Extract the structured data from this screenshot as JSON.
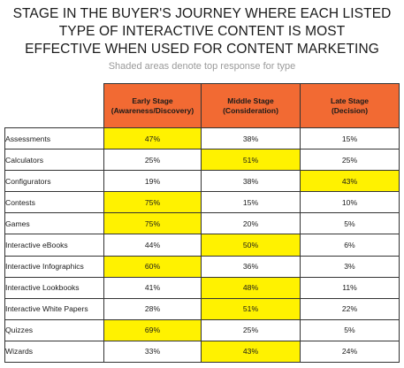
{
  "title_lines": [
    "STAGE IN THE BUYER'S JOURNEY WHERE EACH LISTED",
    "TYPE OF INTERACTIVE CONTENT IS MOST",
    "EFFECTIVE WHEN USED FOR CONTENT MARKETING"
  ],
  "subtitle": "Shaded areas denote top response for type",
  "colors": {
    "header_bg": "#f26a33",
    "highlight": "#fff200"
  },
  "chart_data": {
    "type": "table",
    "columns": [
      {
        "line1": "Early Stage",
        "line2": "(Awareness/Discovery)"
      },
      {
        "line1": "Middle Stage",
        "line2": "(Consideration)"
      },
      {
        "line1": "Late Stage",
        "line2": "(Decision)"
      }
    ],
    "rows": [
      {
        "label": "Assessments",
        "values": [
          "47%",
          "38%",
          "15%"
        ],
        "top": 0
      },
      {
        "label": "Calculators",
        "values": [
          "25%",
          "51%",
          "25%"
        ],
        "top": 1
      },
      {
        "label": "Configurators",
        "values": [
          "19%",
          "38%",
          "43%"
        ],
        "top": 2
      },
      {
        "label": "Contests",
        "values": [
          "75%",
          "15%",
          "10%"
        ],
        "top": 0
      },
      {
        "label": "Games",
        "values": [
          "75%",
          "20%",
          "5%"
        ],
        "top": 0
      },
      {
        "label": "Interactive eBooks",
        "values": [
          "44%",
          "50%",
          "6%"
        ],
        "top": 1
      },
      {
        "label": "Interactive Infographics",
        "values": [
          "60%",
          "36%",
          "3%"
        ],
        "top": 0
      },
      {
        "label": "Interactive Lookbooks",
        "values": [
          "41%",
          "48%",
          "11%"
        ],
        "top": 1
      },
      {
        "label": "Interactive White Papers",
        "values": [
          "28%",
          "51%",
          "22%"
        ],
        "top": 1
      },
      {
        "label": "Quizzes",
        "values": [
          "69%",
          "25%",
          "5%"
        ],
        "top": 0
      },
      {
        "label": "Wizards",
        "values": [
          "33%",
          "43%",
          "24%"
        ],
        "top": 1
      }
    ]
  }
}
